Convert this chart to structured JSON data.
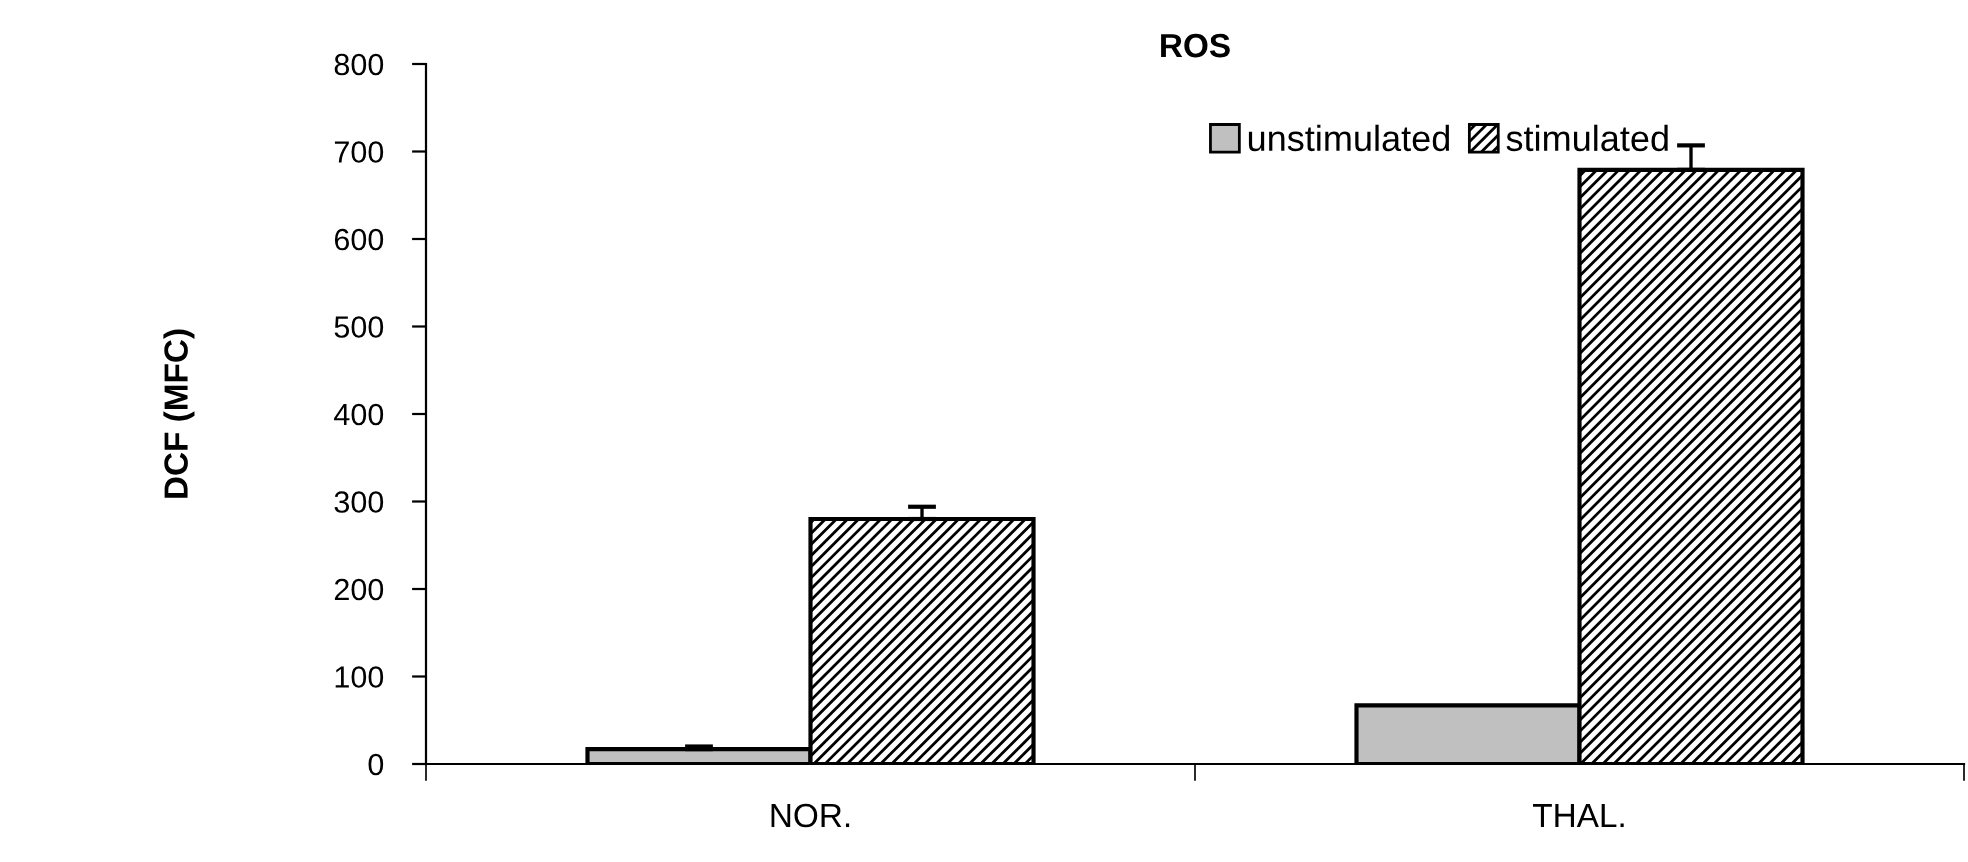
{
  "chart_data": {
    "type": "bar",
    "title": "ROS",
    "ylabel": "DCF (MFC)",
    "categories": [
      "NOR.",
      "THAL."
    ],
    "series": [
      {
        "name": "unstimulated",
        "color": "#c0c0c0",
        "values": [
          17,
          67
        ],
        "errors": [
          3,
          null
        ]
      },
      {
        "name": "stimulated",
        "color": "#000000",
        "values": [
          280,
          679
        ],
        "errors": [
          14,
          28
        ]
      }
    ],
    "ylim": [
      0,
      800
    ],
    "yticks": [
      0,
      100,
      200,
      300,
      400,
      500,
      600,
      700,
      800
    ],
    "grid": false,
    "legend": "top right"
  }
}
